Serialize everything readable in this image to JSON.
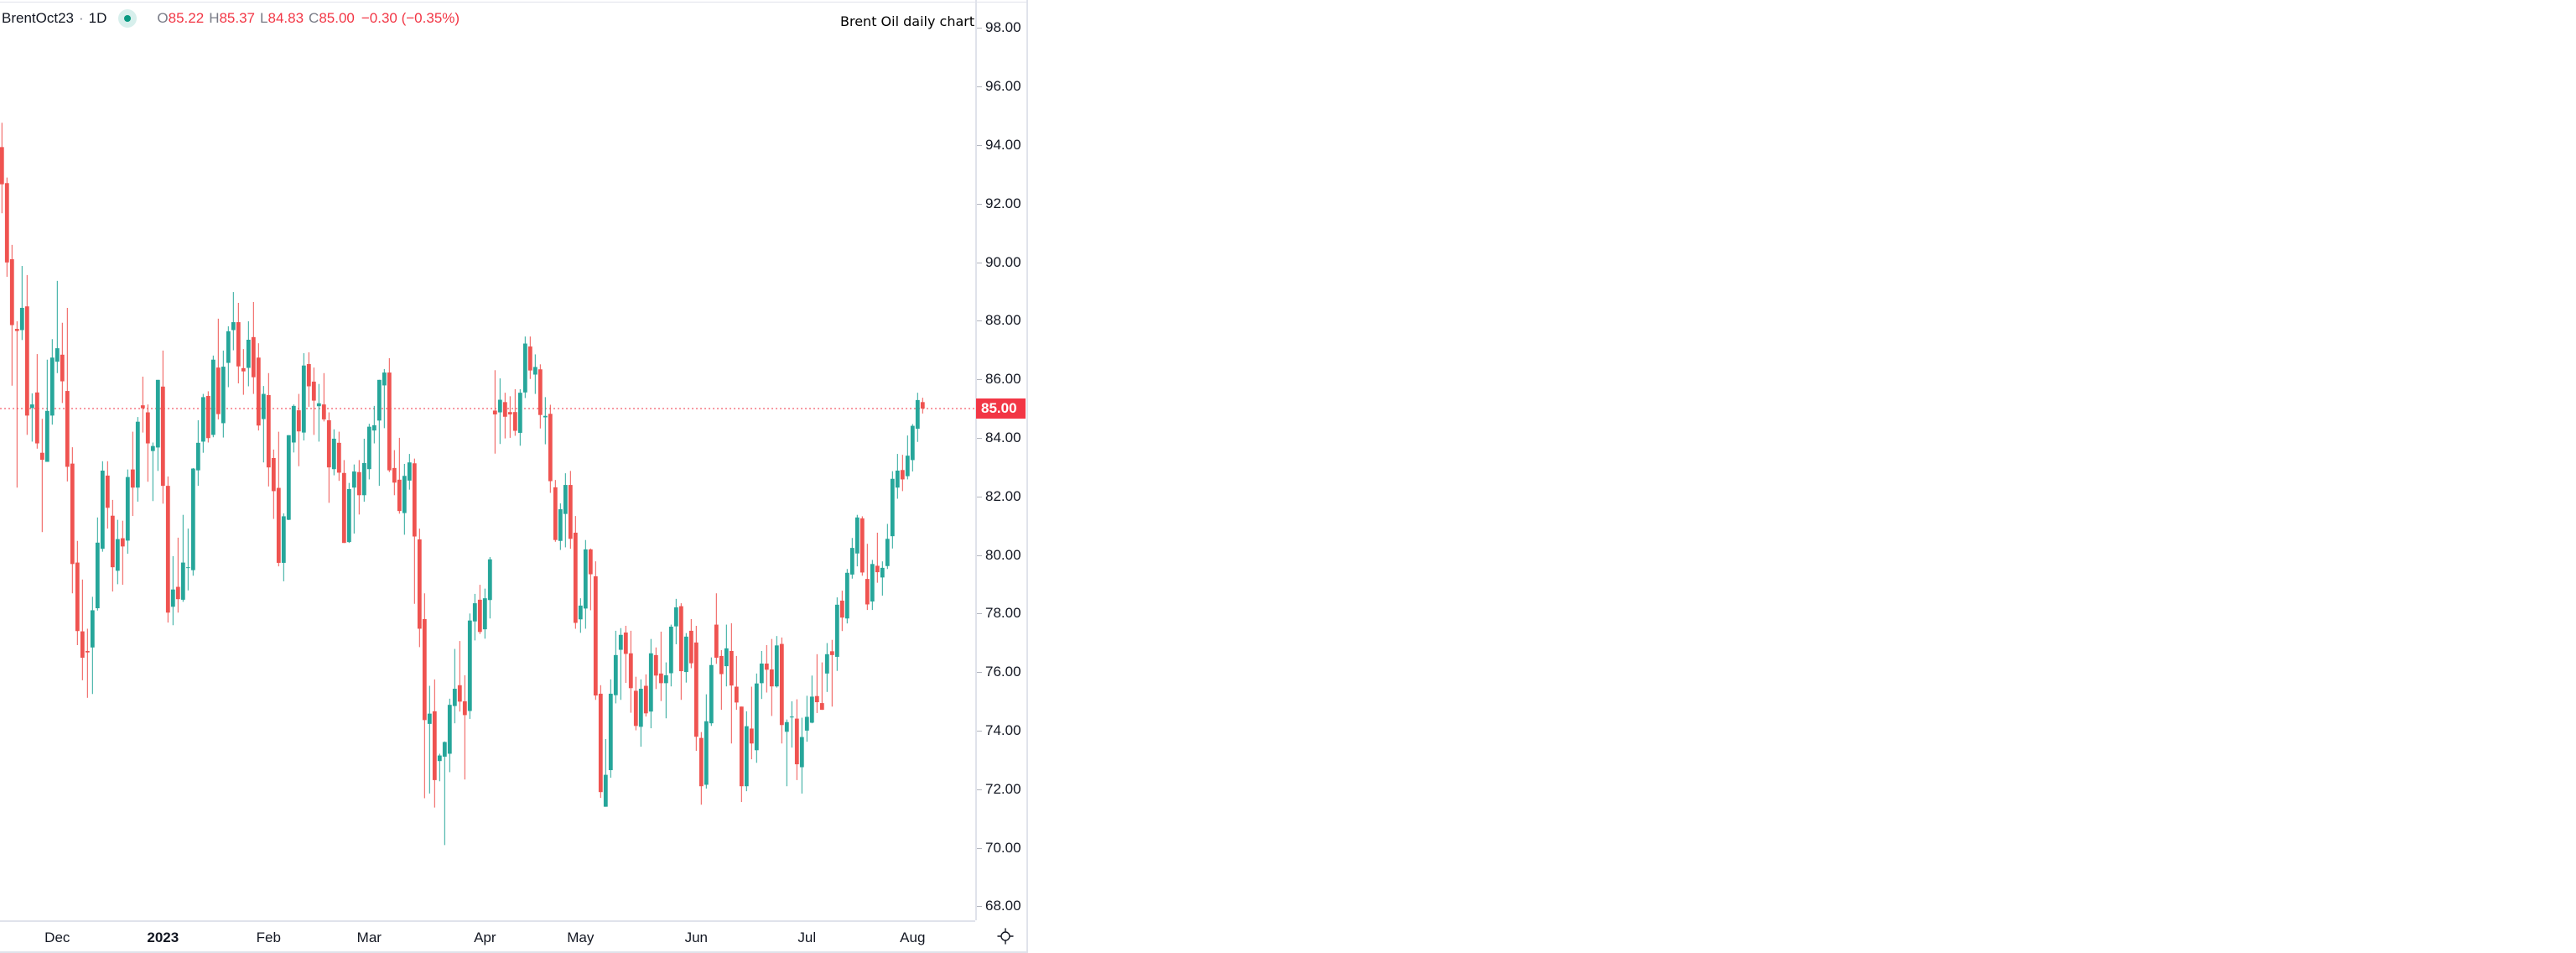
{
  "header": {
    "symbol": "BrentOct23",
    "separator": "·",
    "interval": "1D",
    "status_color": "#089981",
    "ohlc": {
      "o_label": "O",
      "o": "85.22",
      "h_label": "H",
      "h": "85.37",
      "l_label": "L",
      "l": "84.83",
      "c_label": "C",
      "c": "85.00"
    },
    "change": "−0.30 (−0.35%)"
  },
  "annotation": "Brent Oil daily chart",
  "settings_icon": "gear-icon",
  "chart_data": {
    "type": "candlestick",
    "title": "",
    "ylim": [
      67,
      99
    ],
    "grid": false,
    "colors": {
      "up": "#26a69a",
      "down": "#ef5350",
      "last_price": "#f23645"
    },
    "y_ticks": [
      "98.00",
      "96.00",
      "94.00",
      "92.00",
      "90.00",
      "88.00",
      "86.00",
      "84.00",
      "82.00",
      "80.00",
      "78.00",
      "76.00",
      "74.00",
      "72.00",
      "70.00",
      "68.00"
    ],
    "last_price": "85.00",
    "x_labels": [
      {
        "month": "2022-12",
        "text": "Dec",
        "bold": false
      },
      {
        "month": "2023-01",
        "text": "2023",
        "bold": true
      },
      {
        "month": "2023-02",
        "text": "Feb",
        "bold": false
      },
      {
        "month": "2023-03",
        "text": "Mar",
        "bold": false
      },
      {
        "month": "2023-04",
        "text": "Apr",
        "bold": false
      },
      {
        "month": "2023-05",
        "text": "May",
        "bold": false
      },
      {
        "month": "2023-06",
        "text": "Jun",
        "bold": false
      },
      {
        "month": "2023-07",
        "text": "Jul",
        "bold": false
      },
      {
        "month": "2023-08",
        "text": "Aug",
        "bold": false
      }
    ],
    "candle_fields": [
      "date",
      "open",
      "high",
      "low",
      "close"
    ],
    "candles": [
      [
        "2022-11-16",
        93.93,
        94.76,
        91.67,
        92.66
      ],
      [
        "2022-11-17",
        92.7,
        92.89,
        89.5,
        89.99
      ],
      [
        "2022-11-18",
        90.1,
        90.59,
        85.78,
        87.85
      ],
      [
        "2022-11-21",
        87.72,
        87.98,
        82.3,
        87.65
      ],
      [
        "2022-11-22",
        87.68,
        89.87,
        87.34,
        88.44
      ],
      [
        "2022-11-23",
        88.49,
        89.56,
        84.1,
        84.76
      ],
      [
        "2022-11-24",
        85.02,
        85.52,
        83.87,
        85.14
      ],
      [
        "2022-11-25",
        85.55,
        86.86,
        83.63,
        83.81
      ],
      [
        "2022-11-28",
        83.49,
        84.65,
        80.78,
        83.25
      ],
      [
        "2022-11-29",
        83.18,
        86.67,
        83.18,
        84.92
      ],
      [
        "2022-11-30",
        84.76,
        87.37,
        84.45,
        86.74
      ],
      [
        "2022-12-01",
        86.6,
        89.36,
        86.21,
        87.06
      ],
      [
        "2022-12-02",
        86.84,
        87.93,
        85.19,
        85.93
      ],
      [
        "2022-12-05",
        85.6,
        88.44,
        82.51,
        83.01
      ],
      [
        "2022-12-06",
        83.12,
        83.68,
        78.69,
        79.69
      ],
      [
        "2022-12-07",
        79.74,
        80.48,
        76.92,
        77.4
      ],
      [
        "2022-12-08",
        77.39,
        79.16,
        75.72,
        76.49
      ],
      [
        "2022-12-09",
        76.72,
        77.48,
        75.12,
        76.67
      ],
      [
        "2022-12-12",
        76.84,
        78.57,
        75.25,
        78.11
      ],
      [
        "2022-12-13",
        78.18,
        81.28,
        78.1,
        80.42
      ],
      [
        "2022-12-14",
        80.21,
        83.2,
        80.11,
        82.88
      ],
      [
        "2022-12-15",
        82.71,
        83.2,
        80.9,
        81.61
      ],
      [
        "2022-12-16",
        81.34,
        81.88,
        78.75,
        79.58
      ],
      [
        "2022-12-19",
        79.46,
        81.2,
        79.0,
        80.54
      ],
      [
        "2022-12-20",
        80.57,
        81.17,
        78.98,
        80.29
      ],
      [
        "2022-12-21",
        80.49,
        82.92,
        80.04,
        82.66
      ],
      [
        "2022-12-22",
        82.92,
        84.21,
        81.33,
        82.3
      ],
      [
        "2022-12-23",
        82.3,
        84.71,
        81.82,
        84.55
      ],
      [
        "2022-12-27",
        85.11,
        86.09,
        84.18,
        85.01
      ],
      [
        "2022-12-28",
        84.87,
        85.14,
        82.5,
        83.81
      ],
      [
        "2022-12-29",
        83.55,
        83.84,
        81.84,
        83.72
      ],
      [
        "2022-12-30",
        83.67,
        85.98,
        82.87,
        85.98
      ],
      [
        "2023-01-03",
        85.75,
        86.98,
        81.75,
        82.36
      ],
      [
        "2023-01-04",
        82.36,
        82.68,
        77.69,
        78.03
      ],
      [
        "2023-01-05",
        78.23,
        79.96,
        77.6,
        78.82
      ],
      [
        "2023-01-06",
        78.91,
        80.59,
        78.03,
        78.49
      ],
      [
        "2023-01-09",
        78.47,
        81.37,
        78.4,
        79.74
      ],
      [
        "2023-01-10",
        79.56,
        80.9,
        78.79,
        79.58
      ],
      [
        "2023-01-11",
        79.48,
        82.97,
        79.29,
        82.95
      ],
      [
        "2023-01-12",
        82.89,
        84.6,
        82.36,
        83.83
      ],
      [
        "2023-01-13",
        83.87,
        85.5,
        83.49,
        85.39
      ],
      [
        "2023-01-16",
        85.43,
        85.59,
        83.84,
        83.99
      ],
      [
        "2023-01-17",
        84.1,
        86.81,
        84.02,
        86.67
      ],
      [
        "2023-01-18",
        86.4,
        88.07,
        84.63,
        84.81
      ],
      [
        "2023-01-19",
        84.5,
        86.98,
        84.01,
        86.43
      ],
      [
        "2023-01-20",
        86.56,
        87.81,
        85.73,
        87.64
      ],
      [
        "2023-01-23",
        87.68,
        88.98,
        86.99,
        87.95
      ],
      [
        "2023-01-24",
        87.95,
        88.61,
        85.86,
        86.44
      ],
      [
        "2023-01-25",
        86.38,
        87.03,
        85.47,
        86.27
      ],
      [
        "2023-01-26",
        86.39,
        87.98,
        85.76,
        87.35
      ],
      [
        "2023-01-27",
        87.44,
        88.64,
        85.5,
        86.07
      ],
      [
        "2023-01-30",
        86.74,
        87.23,
        84.25,
        84.42
      ],
      [
        "2023-01-31",
        84.64,
        85.77,
        83.16,
        85.5
      ],
      [
        "2023-02-01",
        85.46,
        86.21,
        82.34,
        82.99
      ],
      [
        "2023-02-02",
        83.31,
        83.6,
        81.23,
        82.18
      ],
      [
        "2023-02-03",
        82.29,
        84.21,
        79.61,
        79.73
      ],
      [
        "2023-02-06",
        79.73,
        81.42,
        79.1,
        81.32
      ],
      [
        "2023-02-07",
        81.2,
        84.09,
        81.19,
        84.09
      ],
      [
        "2023-02-08",
        83.84,
        85.14,
        83.5,
        85.09
      ],
      [
        "2023-02-09",
        84.94,
        85.5,
        83.03,
        84.22
      ],
      [
        "2023-02-10",
        84.18,
        86.89,
        83.91,
        86.47
      ],
      [
        "2023-02-13",
        86.52,
        86.92,
        85.06,
        85.76
      ],
      [
        "2023-02-14",
        85.92,
        86.4,
        84.1,
        85.27
      ],
      [
        "2023-02-15",
        85.08,
        85.84,
        83.87,
        85.18
      ],
      [
        "2023-02-16",
        85.14,
        86.21,
        84.56,
        84.63
      ],
      [
        "2023-02-17",
        84.6,
        84.87,
        81.78,
        82.99
      ],
      [
        "2023-02-20",
        82.93,
        84.29,
        82.72,
        83.97
      ],
      [
        "2023-02-21",
        83.83,
        84.21,
        82.53,
        82.81
      ],
      [
        "2023-02-22",
        82.8,
        83.24,
        80.41,
        80.41
      ],
      [
        "2023-02-23",
        80.44,
        82.46,
        80.41,
        82.25
      ],
      [
        "2023-02-24",
        82.3,
        83.09,
        80.73,
        82.85
      ],
      [
        "2023-02-27",
        82.83,
        83.24,
        81.38,
        82.04
      ],
      [
        "2023-02-28",
        82.04,
        83.97,
        81.82,
        83.14
      ],
      [
        "2023-03-01",
        82.93,
        84.48,
        82.58,
        84.38
      ],
      [
        "2023-03-02",
        84.25,
        85.09,
        83.81,
        84.43
      ],
      [
        "2023-03-03",
        84.59,
        85.98,
        82.36,
        85.98
      ],
      [
        "2023-03-06",
        85.79,
        86.35,
        84.33,
        86.23
      ],
      [
        "2023-03-07",
        86.23,
        86.72,
        82.83,
        82.89
      ],
      [
        "2023-03-08",
        82.97,
        83.58,
        82.04,
        82.47
      ],
      [
        "2023-03-09",
        82.57,
        84.0,
        81.41,
        81.5
      ],
      [
        "2023-03-10",
        81.43,
        83.11,
        80.69,
        82.7
      ],
      [
        "2023-03-13",
        82.54,
        83.45,
        82.23,
        83.16
      ],
      [
        "2023-03-14",
        83.13,
        83.29,
        78.33,
        80.63
      ],
      [
        "2023-03-15",
        80.53,
        80.9,
        76.85,
        77.48
      ],
      [
        "2023-03-16",
        77.81,
        78.69,
        71.69,
        74.36
      ],
      [
        "2023-03-17",
        74.23,
        75.53,
        71.85,
        74.58
      ],
      [
        "2023-03-20",
        74.66,
        75.75,
        71.37,
        72.31
      ],
      [
        "2023-03-21",
        72.96,
        73.21,
        72.27,
        73.15
      ],
      [
        "2023-03-22",
        73.11,
        73.63,
        70.09,
        73.61
      ],
      [
        "2023-03-23",
        73.21,
        75.09,
        72.58,
        74.88
      ],
      [
        "2023-03-24",
        74.84,
        76.79,
        74.25,
        75.43
      ],
      [
        "2023-03-27",
        75.55,
        77.06,
        74.65,
        74.99
      ],
      [
        "2023-03-28",
        75.0,
        75.89,
        72.33,
        74.53
      ],
      [
        "2023-03-29",
        74.67,
        78.0,
        74.4,
        77.76
      ],
      [
        "2023-03-30",
        77.73,
        78.67,
        77.08,
        78.35
      ],
      [
        "2023-03-31",
        78.47,
        78.98,
        77.3,
        77.37
      ],
      [
        "2023-04-03",
        77.46,
        78.85,
        77.14,
        78.52
      ],
      [
        "2023-04-04",
        78.46,
        79.93,
        77.83,
        79.85
      ],
      [
        "2023-04-05",
        84.93,
        86.31,
        83.46,
        84.8
      ],
      [
        "2023-04-06",
        84.87,
        86.03,
        83.79,
        85.3
      ],
      [
        "2023-04-10",
        85.22,
        85.54,
        83.98,
        84.72
      ],
      [
        "2023-04-11",
        84.88,
        85.42,
        84.0,
        84.8
      ],
      [
        "2023-04-12",
        84.88,
        85.66,
        84.07,
        84.24
      ],
      [
        "2023-04-13",
        84.17,
        85.66,
        83.73,
        85.54
      ],
      [
        "2023-04-14",
        85.55,
        87.46,
        85.36,
        87.22
      ],
      [
        "2023-04-17",
        87.12,
        87.46,
        86.01,
        86.3
      ],
      [
        "2023-04-18",
        86.16,
        86.85,
        85.5,
        86.42
      ],
      [
        "2023-04-19",
        86.34,
        86.51,
        84.32,
        84.78
      ],
      [
        "2023-04-20",
        84.7,
        85.39,
        83.78,
        84.75
      ],
      [
        "2023-04-21",
        84.82,
        85.13,
        82.12,
        82.52
      ],
      [
        "2023-04-24",
        82.31,
        82.56,
        80.45,
        80.51
      ],
      [
        "2023-04-25",
        80.48,
        81.76,
        80.17,
        81.56
      ],
      [
        "2023-04-26",
        81.4,
        82.79,
        80.26,
        82.39
      ],
      [
        "2023-04-27",
        82.39,
        82.87,
        80.21,
        80.55
      ],
      [
        "2023-04-28",
        80.76,
        81.33,
        77.48,
        77.68
      ],
      [
        "2023-05-01",
        77.8,
        78.52,
        77.34,
        78.27
      ],
      [
        "2023-05-02",
        78.17,
        80.51,
        77.48,
        80.19
      ],
      [
        "2023-05-03",
        80.19,
        80.22,
        78.11,
        79.34
      ],
      [
        "2023-05-04",
        79.27,
        79.78,
        75.05,
        75.2
      ],
      [
        "2023-05-05",
        75.26,
        75.55,
        71.7,
        71.9
      ],
      [
        "2023-05-08",
        71.4,
        73.71,
        71.4,
        72.49
      ],
      [
        "2023-05-09",
        72.65,
        75.75,
        72.39,
        75.26
      ],
      [
        "2023-05-10",
        75.21,
        77.41,
        74.93,
        76.58
      ],
      [
        "2023-05-11",
        76.76,
        77.5,
        75.05,
        77.27
      ],
      [
        "2023-05-12",
        77.35,
        77.58,
        75.63,
        76.62
      ],
      [
        "2023-05-15",
        76.64,
        77.41,
        74.61,
        75.45
      ],
      [
        "2023-05-16",
        75.36,
        75.84,
        74.01,
        74.16
      ],
      [
        "2023-05-17",
        74.13,
        75.75,
        73.45,
        75.43
      ],
      [
        "2023-05-18",
        75.53,
        75.92,
        74.48,
        74.59
      ],
      [
        "2023-05-19",
        74.65,
        77.13,
        74.08,
        76.64
      ],
      [
        "2023-05-22",
        76.58,
        76.84,
        75.42,
        75.88
      ],
      [
        "2023-05-23",
        75.95,
        77.38,
        75.01,
        75.62
      ],
      [
        "2023-05-24",
        75.62,
        76.33,
        74.42,
        75.89
      ],
      [
        "2023-05-25",
        75.96,
        77.62,
        75.51,
        77.55
      ],
      [
        "2023-05-26",
        77.56,
        78.5,
        76.95,
        78.21
      ],
      [
        "2023-05-29",
        78.25,
        78.35,
        75.05,
        76.03
      ],
      [
        "2023-05-30",
        76.0,
        77.33,
        75.64,
        77.21
      ],
      [
        "2023-05-31",
        77.41,
        77.81,
        76.13,
        76.3
      ],
      [
        "2023-06-01",
        77.01,
        77.58,
        73.31,
        73.79
      ],
      [
        "2023-06-02",
        73.75,
        73.95,
        71.47,
        72.1
      ],
      [
        "2023-06-05",
        72.15,
        75.24,
        72.02,
        74.32
      ],
      [
        "2023-06-06",
        74.25,
        76.5,
        74.16,
        76.24
      ],
      [
        "2023-06-07",
        77.62,
        78.69,
        76.28,
        76.49
      ],
      [
        "2023-06-08",
        76.55,
        76.75,
        74.71,
        75.93
      ],
      [
        "2023-06-09",
        76.2,
        77.62,
        75.51,
        76.81
      ],
      [
        "2023-06-12",
        76.72,
        77.67,
        73.56,
        75.54
      ],
      [
        "2023-06-13",
        75.5,
        76.55,
        74.71,
        74.96
      ],
      [
        "2023-06-14",
        74.82,
        74.82,
        71.56,
        72.1
      ],
      [
        "2023-06-15",
        72.1,
        74.66,
        71.93,
        74.15
      ],
      [
        "2023-06-16",
        74.07,
        75.5,
        73.02,
        73.56
      ],
      [
        "2023-06-19",
        73.33,
        75.95,
        72.9,
        75.61
      ],
      [
        "2023-06-20",
        75.62,
        76.72,
        75.08,
        76.29
      ],
      [
        "2023-06-21",
        76.29,
        76.92,
        75.3,
        76.08
      ],
      [
        "2023-06-22",
        76.09,
        77.13,
        74.5,
        75.51
      ],
      [
        "2023-06-23",
        75.51,
        77.23,
        75.47,
        76.91
      ],
      [
        "2023-06-26",
        76.96,
        77.18,
        73.56,
        74.19
      ],
      [
        "2023-06-27",
        73.96,
        74.38,
        72.1,
        74.29
      ],
      [
        "2023-06-28",
        74.45,
        75.0,
        73.42,
        74.48
      ],
      [
        "2023-06-29",
        74.41,
        75.07,
        72.31,
        72.85
      ],
      [
        "2023-06-30",
        72.75,
        74.44,
        71.85,
        73.78
      ],
      [
        "2023-07-03",
        74.0,
        75.19,
        73.62,
        74.47
      ],
      [
        "2023-07-04",
        74.27,
        75.88,
        74.25,
        75.16
      ],
      [
        "2023-07-05",
        75.18,
        76.61,
        74.6,
        74.97
      ],
      [
        "2023-07-06",
        74.94,
        76.33,
        74.71,
        74.71
      ],
      [
        "2023-07-07",
        75.95,
        76.99,
        75.32,
        76.61
      ],
      [
        "2023-07-10",
        76.71,
        77.1,
        74.82,
        76.58
      ],
      [
        "2023-07-11",
        76.52,
        78.55,
        76.04,
        78.3
      ],
      [
        "2023-07-12",
        78.44,
        78.78,
        77.4,
        77.86
      ],
      [
        "2023-07-13",
        77.83,
        79.52,
        77.66,
        79.39
      ],
      [
        "2023-07-14",
        79.33,
        80.58,
        79.19,
        80.24
      ],
      [
        "2023-07-17",
        80.05,
        81.37,
        79.61,
        81.28
      ],
      [
        "2023-07-18",
        81.25,
        81.32,
        79.29,
        79.4
      ],
      [
        "2023-07-19",
        79.18,
        80.38,
        78.12,
        78.31
      ],
      [
        "2023-07-20",
        78.41,
        79.83,
        78.12,
        79.69
      ],
      [
        "2023-07-21",
        79.63,
        80.76,
        79.05,
        79.41
      ],
      [
        "2023-07-24",
        79.23,
        79.78,
        78.61,
        79.56
      ],
      [
        "2023-07-25",
        79.62,
        81.06,
        79.52,
        80.55
      ],
      [
        "2023-07-26",
        80.64,
        82.86,
        80.22,
        82.6
      ],
      [
        "2023-07-27",
        82.3,
        83.45,
        81.92,
        82.88
      ],
      [
        "2023-07-28",
        82.9,
        83.42,
        82.18,
        82.58
      ],
      [
        "2023-07-31",
        82.69,
        84.08,
        82.58,
        83.39
      ],
      [
        "2023-08-01",
        83.24,
        84.47,
        82.85,
        84.41
      ],
      [
        "2023-08-02",
        84.31,
        85.54,
        83.86,
        85.29
      ],
      [
        "2023-08-03",
        85.22,
        85.37,
        84.83,
        85.0
      ]
    ]
  }
}
